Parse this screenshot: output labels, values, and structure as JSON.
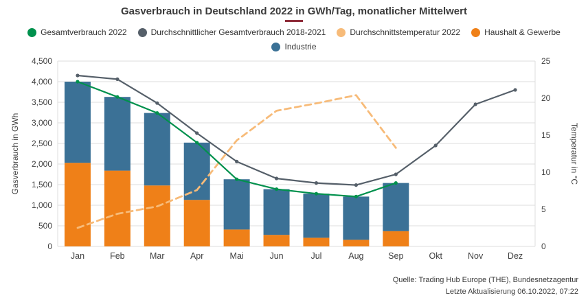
{
  "title": "Gasverbrauch in Deutschland 2022 in GWh/Tag, monatlicher Mittelwert",
  "legend": {
    "rows": [
      [
        {
          "label": "Gesamtverbrauch 2022",
          "color": "#00914d"
        },
        {
          "label": "Durchschnittlicher Gesamtverbrauch 2018-2021",
          "color": "#555f69"
        },
        {
          "label": "Durchschnittstemperatur 2022",
          "color": "#f7bb79"
        },
        {
          "label": "Haushalt & Gewerbe",
          "color": "#ef8018"
        }
      ],
      [
        {
          "label": "Industrie",
          "color": "#3b7196"
        }
      ]
    ]
  },
  "chart_data": {
    "type": "combo-stacked-bar-line",
    "categories": [
      "Jan",
      "Feb",
      "Mar",
      "Apr",
      "Mai",
      "Jun",
      "Jul",
      "Aug",
      "Sep",
      "Okt",
      "Nov",
      "Dez"
    ],
    "bar_series": [
      {
        "name": "Haushalt & Gewerbe",
        "color": "#ef8018",
        "values": [
          2030,
          1840,
          1480,
          1130,
          410,
          280,
          210,
          160,
          370,
          null,
          null,
          null
        ]
      },
      {
        "name": "Industrie",
        "color": "#3b7196",
        "values": [
          1970,
          1790,
          1760,
          1390,
          1220,
          1110,
          1070,
          1050,
          1170,
          null,
          null,
          null
        ]
      }
    ],
    "line_series": [
      {
        "name": "Durchschnittlicher Gesamtverbrauch 2018-2021",
        "color": "#555f69",
        "axis": "left",
        "dashed": false,
        "values": [
          4150,
          4060,
          3480,
          2750,
          2060,
          1650,
          1540,
          1490,
          1750,
          2450,
          3450,
          3800
        ]
      },
      {
        "name": "Durchschnittstemperatur 2022",
        "color": "#f7bb79",
        "axis": "right",
        "dashed": true,
        "values": [
          2.5,
          4.4,
          5.4,
          7.6,
          14.3,
          18.3,
          19.3,
          20.4,
          13.3,
          null,
          null,
          null
        ]
      },
      {
        "name": "Gesamtverbrauch 2022",
        "color": "#00914d",
        "axis": "left",
        "dashed": false,
        "values": [
          4000,
          3630,
          3240,
          2520,
          1630,
          1390,
          1280,
          1210,
          1540,
          null,
          null,
          null
        ]
      }
    ],
    "left_axis": {
      "label": "Gasverbrauch in GWh",
      "min": 0,
      "max": 4500,
      "step": 500
    },
    "right_axis": {
      "label": "Temperatur in °C",
      "min": 0,
      "max": 25,
      "step": 5
    },
    "grid": true,
    "legend_position": "top"
  },
  "footer": {
    "source": "Quelle: Trading Hub Europe (THE), Bundesnetzagentur",
    "updated": "Letzte Aktualisierung 06.10.2022, 07:22"
  },
  "colors": {
    "title_underline": "#8f2d3a",
    "grid": "#dcdcdc",
    "axis_text": "#3f3f3f"
  }
}
